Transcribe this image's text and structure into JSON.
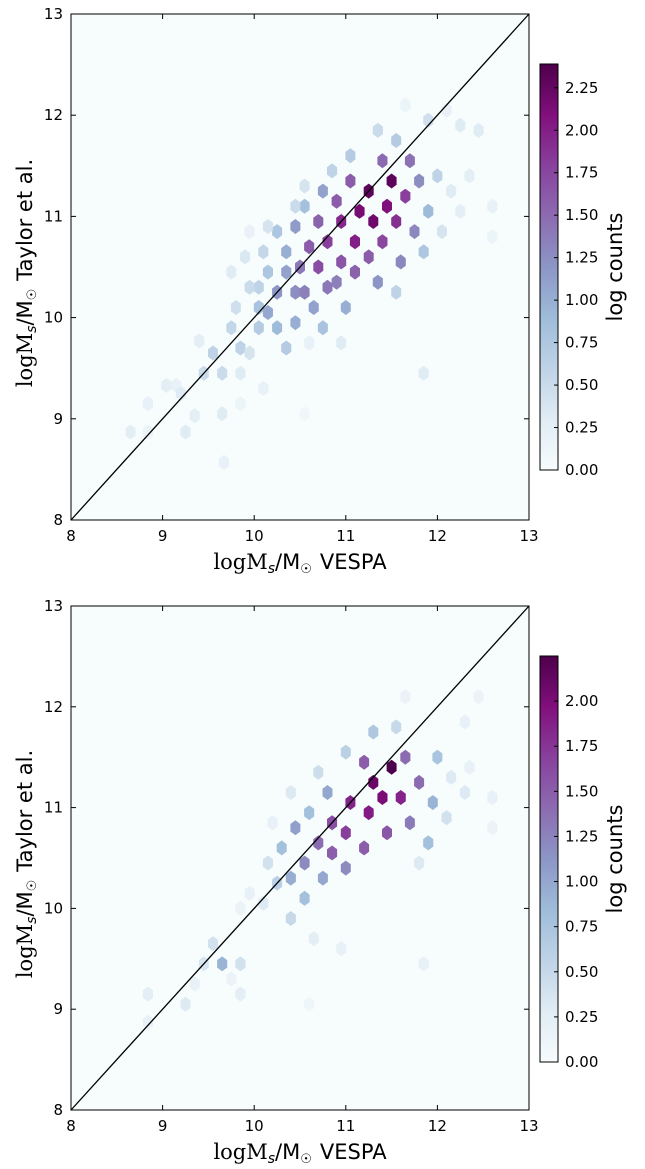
{
  "chart_data": [
    {
      "type": "heatmap",
      "subtype": "hexbin",
      "xlabel_math": "logM",
      "xlabel_sub": "s",
      "xlabel_slash": "/M",
      "xlabel_sun": "☉",
      "xlabel_text": "VESPA",
      "ylabel_math": "logM",
      "ylabel_sub": "s",
      "ylabel_slash": "/M",
      "ylabel_sun": "☉",
      "ylabel_text": "Taylor et al.",
      "xlim": [
        8,
        13
      ],
      "ylim": [
        8,
        13
      ],
      "xticks": [
        "8",
        "9",
        "10",
        "11",
        "12",
        "13"
      ],
      "yticks": [
        "8",
        "9",
        "10",
        "11",
        "12",
        "13"
      ],
      "reference_line": {
        "type": "one-to-one",
        "from": [
          8,
          8
        ],
        "to": [
          13,
          13
        ]
      },
      "colorbar": {
        "label": "log counts",
        "range": [
          0,
          2.39
        ],
        "ticks": [
          "0.00",
          "0.25",
          "0.50",
          "0.75",
          "1.00",
          "1.25",
          "1.50",
          "1.75",
          "2.00",
          "2.25"
        ],
        "cmap": "BuPu",
        "colors": [
          "#f7fcfd",
          "#e0ecf4",
          "#bfd3e6",
          "#9ebcda",
          "#8c96c6",
          "#8c6bb1",
          "#88419d",
          "#810f7c",
          "#4d004b"
        ]
      },
      "background": "#f7fcfd",
      "hexbin_grid": {
        "dx": 0.101,
        "dy": 0.117
      },
      "cells": [
        [
          8.65,
          8.87,
          0.25
        ],
        [
          8.84,
          8.87,
          0.15
        ],
        [
          8.84,
          9.15,
          0.2
        ],
        [
          9.04,
          9.33,
          0.25
        ],
        [
          9.15,
          9.33,
          0.2
        ],
        [
          9.25,
          8.87,
          0.3
        ],
        [
          9.35,
          9.03,
          0.25
        ],
        [
          9.2,
          9.25,
          0.3
        ],
        [
          9.67,
          8.57,
          0.2
        ],
        [
          9.65,
          9.05,
          0.3
        ],
        [
          9.85,
          9.15,
          0.15
        ],
        [
          9.45,
          9.45,
          0.5
        ],
        [
          9.55,
          9.65,
          0.6
        ],
        [
          9.65,
          9.45,
          0.5
        ],
        [
          9.4,
          9.77,
          0.25
        ],
        [
          9.75,
          9.9,
          0.55
        ],
        [
          9.85,
          9.7,
          0.6
        ],
        [
          9.95,
          9.65,
          0.4
        ],
        [
          9.85,
          9.45,
          0.3
        ],
        [
          10.1,
          9.3,
          0.2
        ],
        [
          10.05,
          9.9,
          0.7
        ],
        [
          10.05,
          10.1,
          0.8
        ],
        [
          10.15,
          10.45,
          0.75
        ],
        [
          10.05,
          10.3,
          0.6
        ],
        [
          9.95,
          10.3,
          0.5
        ],
        [
          9.8,
          10.1,
          0.45
        ],
        [
          9.75,
          10.45,
          0.3
        ],
        [
          9.9,
          10.6,
          0.35
        ],
        [
          10.1,
          10.65,
          0.55
        ],
        [
          10.25,
          10.85,
          0.75
        ],
        [
          10.35,
          10.65,
          1.0
        ],
        [
          10.35,
          10.45,
          1.1
        ],
        [
          10.25,
          10.25,
          1.2
        ],
        [
          10.15,
          10.05,
          1.05
        ],
        [
          10.25,
          9.9,
          0.9
        ],
        [
          10.35,
          9.7,
          0.7
        ],
        [
          10.45,
          9.95,
          1.0
        ],
        [
          10.45,
          10.25,
          1.25
        ],
        [
          10.5,
          10.5,
          1.4
        ],
        [
          10.45,
          10.9,
          1.15
        ],
        [
          10.55,
          11.1,
          0.85
        ],
        [
          10.6,
          10.7,
          1.6
        ],
        [
          10.55,
          10.25,
          1.35
        ],
        [
          10.65,
          10.1,
          1.1
        ],
        [
          10.75,
          9.9,
          0.8
        ],
        [
          10.8,
          10.3,
          1.4
        ],
        [
          10.7,
          10.5,
          1.7
        ],
        [
          10.8,
          10.75,
          1.8
        ],
        [
          10.7,
          10.95,
          1.55
        ],
        [
          10.75,
          11.25,
          1.1
        ],
        [
          10.9,
          11.15,
          1.6
        ],
        [
          10.95,
          10.95,
          1.95
        ],
        [
          10.95,
          10.55,
          1.65
        ],
        [
          10.9,
          10.35,
          1.35
        ],
        [
          11.0,
          10.1,
          1.0
        ],
        [
          11.1,
          10.45,
          1.55
        ],
        [
          11.1,
          10.75,
          2.0
        ],
        [
          11.15,
          11.05,
          2.15
        ],
        [
          11.05,
          11.35,
          1.6
        ],
        [
          11.25,
          11.25,
          2.3
        ],
        [
          11.3,
          10.95,
          2.2
        ],
        [
          11.25,
          10.6,
          1.6
        ],
        [
          11.35,
          10.35,
          1.2
        ],
        [
          11.4,
          10.75,
          1.75
        ],
        [
          11.45,
          11.1,
          2.1
        ],
        [
          11.5,
          11.35,
          2.3
        ],
        [
          11.4,
          11.55,
          1.5
        ],
        [
          11.55,
          10.95,
          1.9
        ],
        [
          11.6,
          10.55,
          1.3
        ],
        [
          11.65,
          11.2,
          1.8
        ],
        [
          11.7,
          11.55,
          1.45
        ],
        [
          11.75,
          10.85,
          1.3
        ],
        [
          11.8,
          11.35,
          1.25
        ],
        [
          11.85,
          10.65,
          0.75
        ],
        [
          11.9,
          11.05,
          0.9
        ],
        [
          12.0,
          11.4,
          0.6
        ],
        [
          12.05,
          10.85,
          0.4
        ],
        [
          12.15,
          11.25,
          0.3
        ],
        [
          12.25,
          11.05,
          0.25
        ],
        [
          12.35,
          11.4,
          0.25
        ],
        [
          12.25,
          11.9,
          0.3
        ],
        [
          12.1,
          12.05,
          0.2
        ],
        [
          11.65,
          12.1,
          0.15
        ],
        [
          11.55,
          11.75,
          0.7
        ],
        [
          11.35,
          11.85,
          0.5
        ],
        [
          11.05,
          11.6,
          0.7
        ],
        [
          10.85,
          11.45,
          0.6
        ],
        [
          10.55,
          11.3,
          0.4
        ],
        [
          10.45,
          11.1,
          0.5
        ],
        [
          10.15,
          10.9,
          0.4
        ],
        [
          9.95,
          10.85,
          0.2
        ],
        [
          10.6,
          9.75,
          0.2
        ],
        [
          11.85,
          9.45,
          0.3
        ],
        [
          11.55,
          10.25,
          0.6
        ],
        [
          10.95,
          9.75,
          0.3
        ],
        [
          12.6,
          10.8,
          0.15
        ],
        [
          12.6,
          11.1,
          0.2
        ],
        [
          12.45,
          11.85,
          0.3
        ],
        [
          11.9,
          11.95,
          0.45
        ],
        [
          10.55,
          9.05,
          0.1
        ]
      ]
    },
    {
      "type": "heatmap",
      "subtype": "hexbin",
      "xlabel_math": "logM",
      "xlabel_sub": "s",
      "xlabel_slash": "/M",
      "xlabel_sun": "☉",
      "xlabel_text": "VESPA",
      "ylabel_math": "logM",
      "ylabel_sub": "s",
      "ylabel_slash": "/M",
      "ylabel_sun": "☉",
      "ylabel_text": "Taylor et al.",
      "xlim": [
        8,
        13
      ],
      "ylim": [
        8,
        13
      ],
      "xticks": [
        "8",
        "9",
        "10",
        "11",
        "12",
        "13"
      ],
      "yticks": [
        "8",
        "9",
        "10",
        "11",
        "12",
        "13"
      ],
      "reference_line": {
        "type": "one-to-one",
        "from": [
          8,
          8
        ],
        "to": [
          13,
          13
        ]
      },
      "colorbar": {
        "label": "log counts",
        "range": [
          0,
          2.25
        ],
        "ticks": [
          "0.00",
          "0.25",
          "0.50",
          "0.75",
          "1.00",
          "1.25",
          "1.50",
          "1.75",
          "2.00"
        ],
        "cmap": "BuPu",
        "colors": [
          "#f7fcfd",
          "#e0ecf4",
          "#bfd3e6",
          "#9ebcda",
          "#8c96c6",
          "#8c6bb1",
          "#88419d",
          "#810f7c",
          "#4d004b"
        ]
      },
      "background": "#f7fcfd",
      "hexbin_grid": {
        "dx": 0.101,
        "dy": 0.117
      },
      "cells": [
        [
          8.84,
          8.87,
          0.2
        ],
        [
          8.84,
          9.15,
          0.25
        ],
        [
          9.25,
          9.05,
          0.3
        ],
        [
          9.35,
          9.25,
          0.2
        ],
        [
          9.45,
          9.45,
          0.35
        ],
        [
          9.55,
          9.65,
          0.4
        ],
        [
          9.65,
          9.45,
          0.9
        ],
        [
          9.85,
          9.45,
          0.4
        ],
        [
          9.85,
          9.15,
          0.25
        ],
        [
          9.75,
          9.3,
          0.15
        ],
        [
          10.1,
          10.05,
          0.3
        ],
        [
          10.25,
          10.25,
          0.6
        ],
        [
          10.15,
          10.45,
          0.4
        ],
        [
          10.3,
          10.6,
          0.8
        ],
        [
          10.4,
          10.3,
          0.95
        ],
        [
          10.4,
          9.9,
          0.5
        ],
        [
          10.55,
          10.1,
          0.8
        ],
        [
          10.55,
          10.45,
          1.2
        ],
        [
          10.45,
          10.8,
          1.05
        ],
        [
          10.6,
          10.95,
          0.8
        ],
        [
          10.7,
          10.65,
          1.4
        ],
        [
          10.75,
          10.3,
          1.0
        ],
        [
          10.85,
          10.55,
          1.5
        ],
        [
          10.85,
          10.85,
          1.6
        ],
        [
          10.8,
          11.15,
          1.0
        ],
        [
          11.0,
          10.75,
          1.7
        ],
        [
          11.05,
          11.05,
          1.85
        ],
        [
          11.0,
          10.4,
          1.2
        ],
        [
          11.2,
          10.6,
          1.5
        ],
        [
          11.25,
          10.95,
          1.9
        ],
        [
          11.3,
          11.25,
          2.1
        ],
        [
          11.2,
          11.45,
          1.5
        ],
        [
          11.4,
          11.1,
          2.0
        ],
        [
          11.45,
          10.75,
          1.55
        ],
        [
          11.5,
          11.4,
          2.25
        ],
        [
          11.6,
          11.1,
          1.85
        ],
        [
          11.65,
          11.5,
          1.4
        ],
        [
          11.7,
          10.85,
          1.3
        ],
        [
          11.8,
          11.25,
          1.4
        ],
        [
          11.9,
          10.65,
          0.8
        ],
        [
          11.95,
          11.05,
          0.9
        ],
        [
          12.0,
          11.5,
          0.75
        ],
        [
          12.1,
          10.9,
          0.4
        ],
        [
          12.15,
          11.3,
          0.3
        ],
        [
          12.3,
          11.15,
          0.3
        ],
        [
          12.35,
          11.4,
          0.2
        ],
        [
          12.45,
          12.1,
          0.15
        ],
        [
          12.3,
          11.85,
          0.2
        ],
        [
          11.65,
          12.1,
          0.15
        ],
        [
          11.55,
          11.8,
          0.5
        ],
        [
          11.3,
          11.75,
          0.7
        ],
        [
          11.0,
          11.55,
          0.6
        ],
        [
          10.7,
          11.35,
          0.45
        ],
        [
          10.4,
          11.15,
          0.3
        ],
        [
          10.2,
          10.85,
          0.2
        ],
        [
          9.95,
          10.15,
          0.2
        ],
        [
          9.85,
          10.0,
          0.15
        ],
        [
          10.6,
          9.05,
          0.1
        ],
        [
          10.95,
          9.6,
          0.2
        ],
        [
          11.85,
          9.45,
          0.2
        ],
        [
          10.65,
          9.7,
          0.25
        ],
        [
          12.6,
          10.8,
          0.15
        ],
        [
          12.6,
          11.1,
          0.2
        ],
        [
          11.8,
          10.45,
          0.3
        ]
      ]
    }
  ]
}
